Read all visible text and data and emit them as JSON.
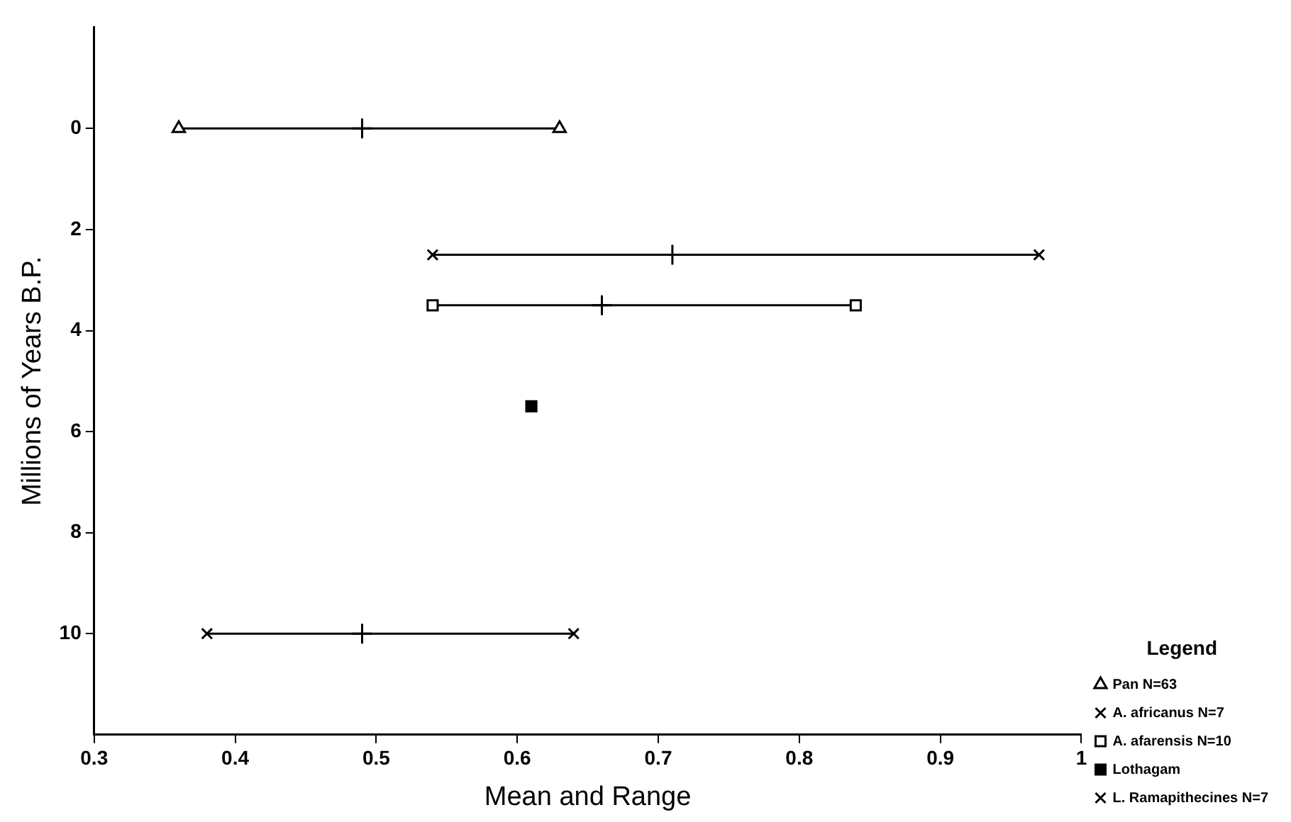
{
  "chart_data": {
    "type": "line",
    "xlabel": "Mean and Range",
    "ylabel": "Millions of Years B.P.",
    "legend_title": "Legend",
    "legend": "bottom right",
    "grid": false,
    "line_style": "solid",
    "xlim": [
      0.3,
      1
    ],
    "xticks": [
      0.3,
      0.4,
      0.5,
      0.6,
      0.7,
      0.8,
      0.9,
      1
    ],
    "ylim": [
      12,
      -2
    ],
    "yticks": [
      0,
      2,
      4,
      6,
      8,
      10
    ],
    "series": [
      {
        "name": "Pan N=63",
        "color": "#000000",
        "marker": "triangle",
        "x": [
          0.36,
          0.63
        ],
        "values": [
          0,
          0
        ]
      },
      {
        "name": "A. africanus N=7",
        "color": "#000000",
        "marker": "cross",
        "x": [
          0.54,
          0.97
        ],
        "values": [
          2.5,
          2.5
        ]
      },
      {
        "name": "A. afarensis N=10",
        "color": "#000000",
        "marker": "square",
        "x": [
          0.54,
          0.84
        ],
        "values": [
          3.5,
          3.5
        ]
      },
      {
        "name": "Lothagam",
        "color": "#000000",
        "type": "scatter",
        "marker": "square",
        "x": [
          0.61
        ],
        "values": [
          5.5
        ]
      },
      {
        "name": "L. Ramapithecines N=7",
        "color": "#000000",
        "marker": "cross",
        "x": [
          0.38,
          0.64
        ],
        "values": [
          10,
          10
        ]
      },
      {
        "color": "#000000",
        "type": "scatter",
        "marker": "cross",
        "x": [
          0.49,
          0.71,
          0.66,
          0.49
        ],
        "values": [
          0,
          2.5,
          3.5,
          10
        ]
      }
    ]
  }
}
